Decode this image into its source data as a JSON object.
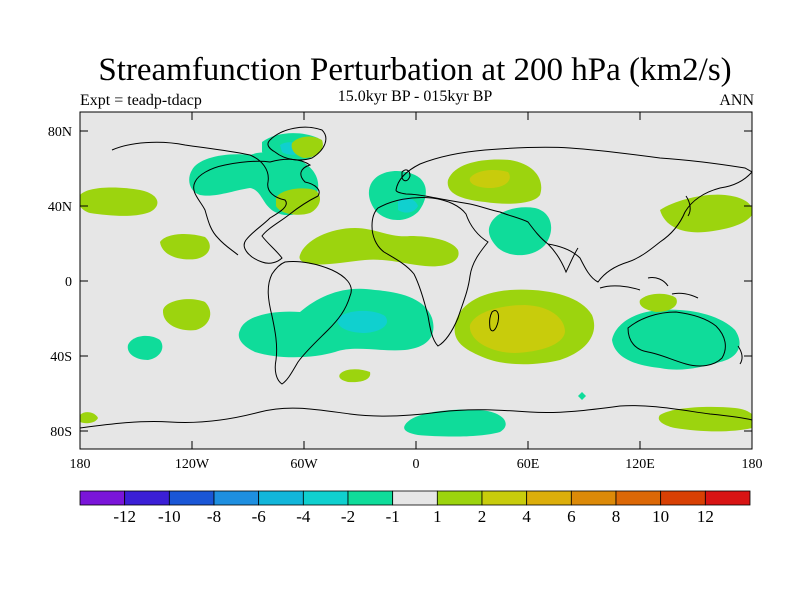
{
  "title": "Streamfunction Perturbation at 200 hPa (km2/s)",
  "subtitle": "15.0kyr BP - 015kyr BP",
  "experiment": "Expt = teadp-tdacp",
  "season": "ANN",
  "latitude_labels": [
    "80N",
    "40N",
    "0",
    "40S",
    "80S"
  ],
  "longitude_labels": [
    "180",
    "120W",
    "60W",
    "0",
    "60E",
    "120E",
    "180"
  ],
  "colorbar": {
    "colors": [
      "#7a15d9",
      "#3b1fd6",
      "#1a56d6",
      "#1e8fe0",
      "#12b6da",
      "#10d0cf",
      "#0fdc9a",
      "#e6e6e6",
      "#9cd40e",
      "#c8cc0c",
      "#dcae0a",
      "#dc8a08",
      "#dc6806",
      "#d84004",
      "#d81414"
    ],
    "labels": [
      "-12",
      "-10",
      "-8",
      "-6",
      "-4",
      "-2",
      "-1",
      "1",
      "2",
      "4",
      "6",
      "8",
      "10",
      "12"
    ]
  },
  "colors": {
    "background": "#e6e6e6",
    "negative_weak": "#0fdc9a",
    "negative_mid": "#10d0cf",
    "positive_weak": "#9cd40e",
    "positive_mid": "#c8cc0c"
  }
}
